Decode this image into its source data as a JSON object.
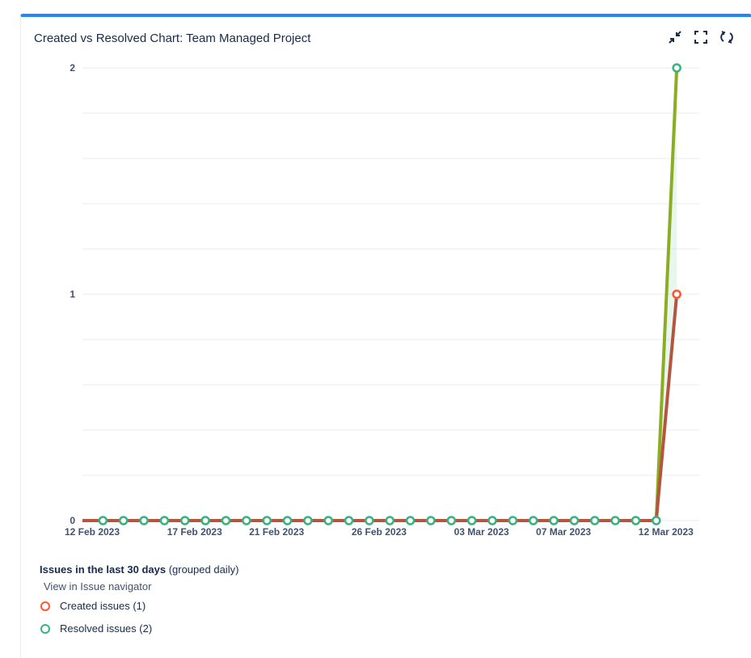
{
  "header": {
    "title": "Created vs Resolved Chart: Team Managed Project",
    "icons": [
      "collapse-icon",
      "fullscreen-icon",
      "refresh-icon"
    ]
  },
  "chart_data": {
    "type": "line",
    "x": [
      "12 Feb 2023",
      "13 Feb 2023",
      "14 Feb 2023",
      "15 Feb 2023",
      "16 Feb 2023",
      "17 Feb 2023",
      "18 Feb 2023",
      "19 Feb 2023",
      "20 Feb 2023",
      "21 Feb 2023",
      "22 Feb 2023",
      "23 Feb 2023",
      "24 Feb 2023",
      "25 Feb 2023",
      "26 Feb 2023",
      "27 Feb 2023",
      "28 Feb 2023",
      "01 Mar 2023",
      "02 Mar 2023",
      "03 Mar 2023",
      "04 Mar 2023",
      "05 Mar 2023",
      "06 Mar 2023",
      "07 Mar 2023",
      "08 Mar 2023",
      "09 Mar 2023",
      "10 Mar 2023",
      "11 Mar 2023",
      "12 Mar 2023",
      "13 Mar 2023"
    ],
    "xtick_labels": [
      "12 Feb 2023",
      "17 Feb 2023",
      "21 Feb 2023",
      "26 Feb 2023",
      "03 Mar 2023",
      "07 Mar 2023",
      "12 Mar 2023"
    ],
    "yticks": [
      "0",
      "1",
      "2"
    ],
    "ylim": [
      0,
      2
    ],
    "grid": true,
    "series": [
      {
        "name": "Created issues",
        "color": "#b6553d",
        "marker": "#ff5630",
        "values": [
          0,
          0,
          0,
          0,
          0,
          0,
          0,
          0,
          0,
          0,
          0,
          0,
          0,
          0,
          0,
          0,
          0,
          0,
          0,
          0,
          0,
          0,
          0,
          0,
          0,
          0,
          0,
          0,
          0,
          1
        ]
      },
      {
        "name": "Resolved issues",
        "color": "#8cad22",
        "marker": "#36b37e",
        "values": [
          0,
          0,
          0,
          0,
          0,
          0,
          0,
          0,
          0,
          0,
          0,
          0,
          0,
          0,
          0,
          0,
          0,
          0,
          0,
          0,
          0,
          0,
          0,
          0,
          0,
          0,
          0,
          0,
          0,
          2
        ]
      }
    ]
  },
  "legend": {
    "title_bold": "Issues in the last 30 days",
    "title_rest": " (grouped daily)",
    "nav_link": "View in Issue navigator",
    "created": "Created issues (1)",
    "resolved": "Resolved issues (2)"
  }
}
